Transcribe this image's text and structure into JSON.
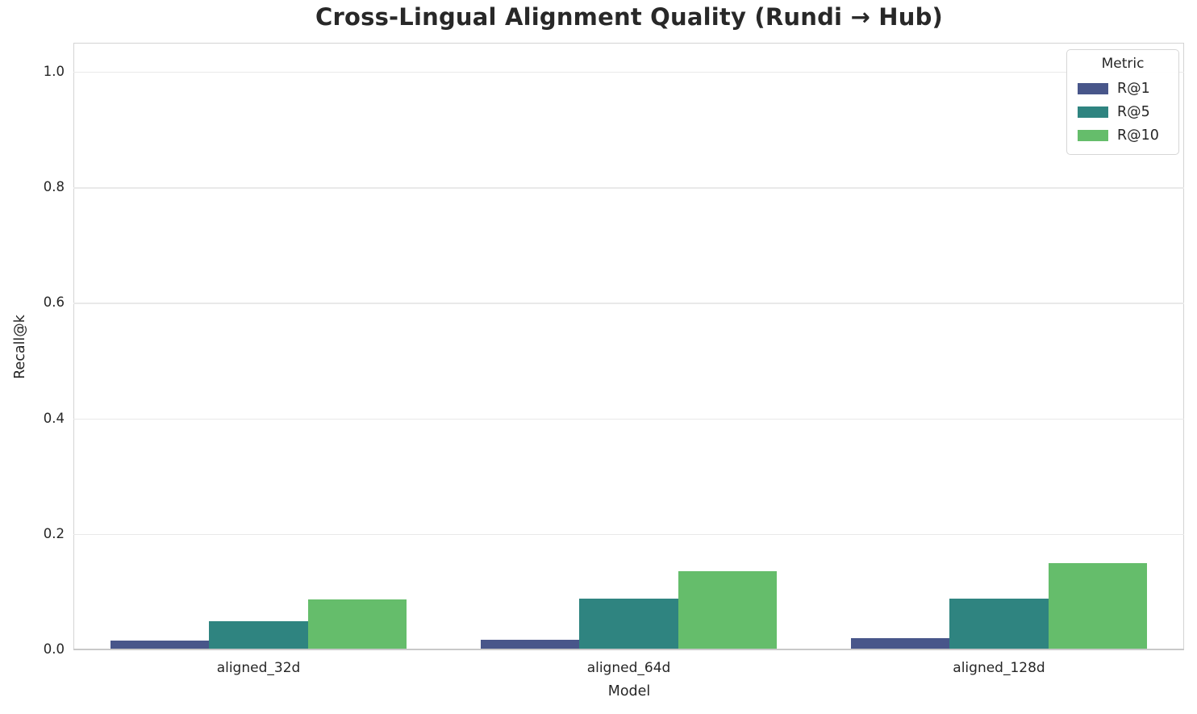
{
  "chart_data": {
    "type": "bar",
    "title": "Cross-Lingual Alignment Quality (Rundi → Hub)",
    "xlabel": "Model",
    "ylabel": "Recall@k",
    "categories": [
      "aligned_32d",
      "aligned_64d",
      "aligned_128d"
    ],
    "series": [
      {
        "name": "R@1",
        "color": "#48568a",
        "values": [
          0.015,
          0.017,
          0.02
        ]
      },
      {
        "name": "R@5",
        "color": "#2f8480",
        "values": [
          0.049,
          0.088,
          0.088
        ]
      },
      {
        "name": "R@10",
        "color": "#65bd6b",
        "values": [
          0.087,
          0.135,
          0.149
        ]
      }
    ],
    "ylim": [
      0,
      1.05
    ],
    "yticks": [
      0.0,
      0.2,
      0.4,
      0.6,
      0.8,
      1.0
    ],
    "ytick_labels": [
      "0.0",
      "0.2",
      "0.4",
      "0.6",
      "0.8",
      "1.0"
    ],
    "grid": "horizontal",
    "legend": {
      "title": "Metric",
      "position": "upper right"
    }
  }
}
